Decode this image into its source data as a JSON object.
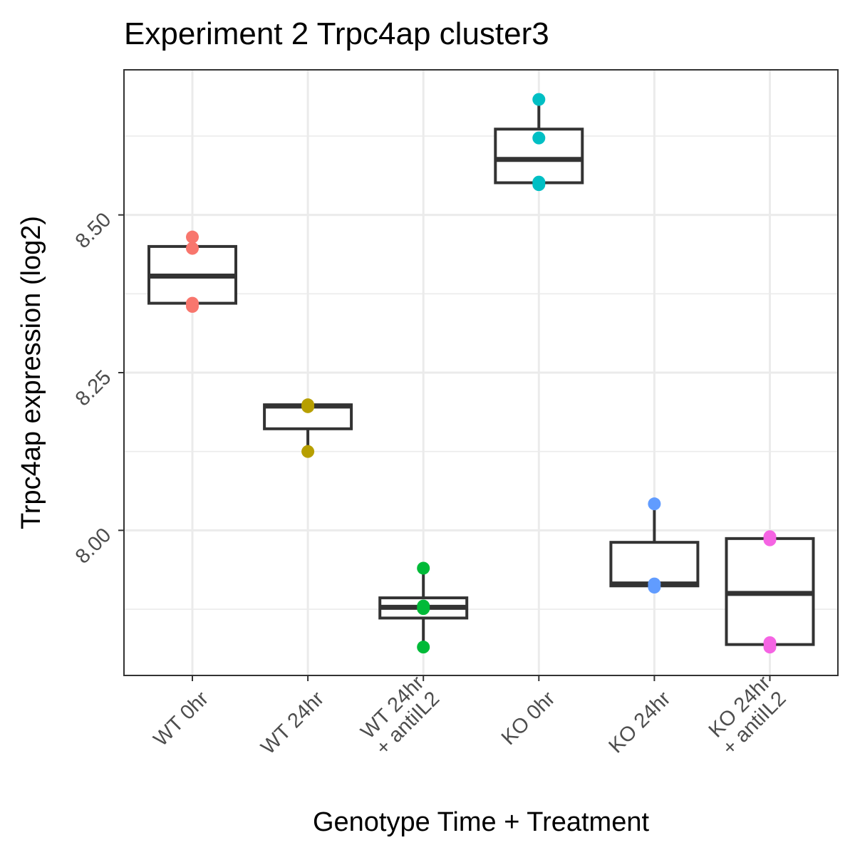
{
  "chart_data": {
    "type": "box",
    "title": "Experiment 2 Trpc4ap cluster3",
    "xlabel": "Genotype Time + Treatment",
    "ylabel": "Trpc4ap expression (log2)",
    "ylim": [
      7.77,
      8.73
    ],
    "y_ticks": [
      8.0,
      8.25,
      8.5
    ],
    "y_tick_labels": [
      "8.00",
      "8.25",
      "8.50"
    ],
    "y_minor_ticks": [
      7.875,
      8.125,
      8.375,
      8.625
    ],
    "grid": true,
    "legend": "none",
    "categories": [
      [
        "WT 0hr"
      ],
      [
        "WT 24hr"
      ],
      [
        "WT 24hr",
        "+ antiIL2"
      ],
      [
        "KO 0hr"
      ],
      [
        "KO 24hr"
      ],
      [
        "KO 24hr",
        "+ antiIL2"
      ]
    ],
    "series": [
      {
        "color": "#F8766D",
        "box": {
          "min": 8.355,
          "q1": 8.36,
          "median": 8.403,
          "q3": 8.45,
          "max": 8.465
        },
        "points": [
          8.465,
          8.447,
          8.36,
          8.355
        ]
      },
      {
        "color": "#B79F00",
        "box": {
          "min": 8.125,
          "q1": 8.161,
          "median": 8.197,
          "q3": 8.199,
          "max": 8.199
        },
        "points": [
          8.199,
          8.196,
          8.125
        ]
      },
      {
        "color": "#00BA38",
        "box": {
          "min": 7.815,
          "q1": 7.861,
          "median": 7.878,
          "q3": 7.893,
          "max": 7.94
        },
        "points": [
          7.94,
          7.88,
          7.876,
          7.815
        ]
      },
      {
        "color": "#00BFC4",
        "box": {
          "min": 8.548,
          "q1": 8.551,
          "median": 8.588,
          "q3": 8.636,
          "max": 8.683
        },
        "points": [
          8.683,
          8.622,
          8.552,
          8.548
        ]
      },
      {
        "color": "#619CFF",
        "box": {
          "min": 7.91,
          "q1": 7.912,
          "median": 7.915,
          "q3": 7.981,
          "max": 8.042
        },
        "points": [
          8.042,
          7.915,
          7.91
        ]
      },
      {
        "color": "#F564E3",
        "box": {
          "min": 7.815,
          "q1": 7.819,
          "median": 7.9,
          "q3": 7.987,
          "max": 7.99
        },
        "points": [
          7.99,
          7.985,
          7.822,
          7.815
        ]
      }
    ]
  }
}
